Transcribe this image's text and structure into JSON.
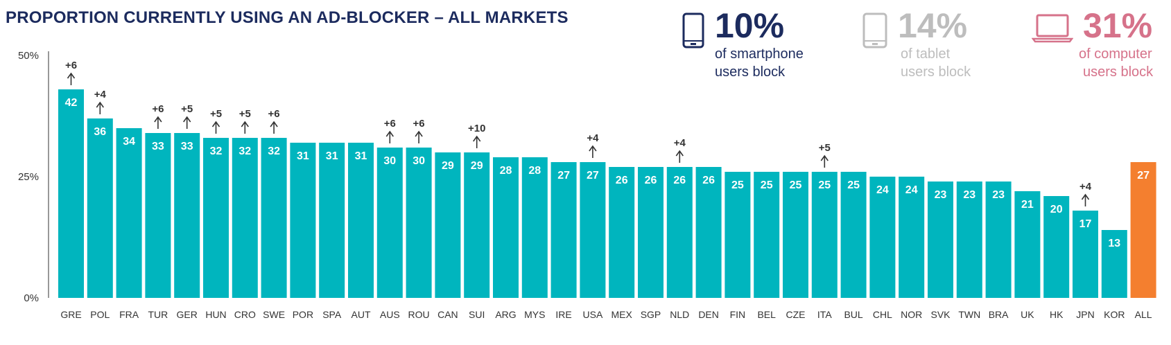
{
  "header": {
    "title": "PROPORTION CURRENTLY USING AN AD-BLOCKER – ALL MARKETS"
  },
  "device_stats": [
    {
      "icon": "smartphone-icon",
      "value": "10%",
      "line1": "of smartphone",
      "line2": "users block",
      "color": "#1c2b5e"
    },
    {
      "icon": "tablet-icon",
      "value": "14%",
      "line1": "of tablet",
      "line2": "users block",
      "color": "#bdbdbd"
    },
    {
      "icon": "laptop-icon",
      "value": "31%",
      "line1": "of computer",
      "line2": "users block",
      "color": "#d6728a"
    }
  ],
  "chart_data": {
    "type": "bar",
    "title": "PROPORTION CURRENTLY USING AN AD-BLOCKER – ALL MARKETS",
    "ylim": [
      0,
      50
    ],
    "y_ticks": [
      "0%",
      "25%",
      "50%"
    ],
    "grid": false,
    "categories": [
      "GRE",
      "POL",
      "FRA",
      "TUR",
      "GER",
      "HUN",
      "CRO",
      "SWE",
      "POR",
      "SPA",
      "AUT",
      "AUS",
      "ROU",
      "CAN",
      "SUI",
      "ARG",
      "MYS",
      "IRE",
      "USA",
      "MEX",
      "SGP",
      "NLD",
      "DEN",
      "FIN",
      "BEL",
      "CZE",
      "ITA",
      "BUL",
      "CHL",
      "NOR",
      "SVK",
      "TWN",
      "BRA",
      "UK",
      "HK",
      "JPN",
      "KOR",
      "ALL"
    ],
    "values": [
      42,
      36,
      34,
      33,
      33,
      32,
      32,
      32,
      31,
      31,
      31,
      30,
      30,
      29,
      29,
      28,
      28,
      27,
      27,
      26,
      26,
      26,
      26,
      25,
      25,
      25,
      25,
      25,
      24,
      24,
      23,
      23,
      23,
      21,
      20,
      17,
      13,
      27
    ],
    "changes": [
      "+6",
      "+4",
      "",
      "+6",
      "+5",
      "+5",
      "+5",
      "+6",
      "",
      "",
      "",
      "+6",
      "+6",
      "",
      "+10",
      "",
      "",
      "",
      "+4",
      "",
      "",
      "+4",
      "",
      "",
      "",
      "",
      "+5",
      "",
      "",
      "",
      "",
      "",
      "",
      "",
      "",
      "+4",
      "",
      ""
    ],
    "plot_values": [
      43,
      37,
      35,
      34,
      34,
      33,
      33,
      33,
      32,
      32,
      32,
      31,
      31,
      30,
      30,
      29,
      29,
      28,
      28,
      27,
      27,
      27,
      27,
      26,
      26,
      26,
      26,
      26,
      25,
      25,
      24,
      24,
      24,
      22,
      21,
      18,
      14,
      28
    ],
    "colors": {
      "bar": "#00b5be",
      "highlight": "#f47f2f",
      "bar_label": "#ffffff",
      "axis_text": "#333333"
    },
    "highlight_category": "ALL"
  }
}
